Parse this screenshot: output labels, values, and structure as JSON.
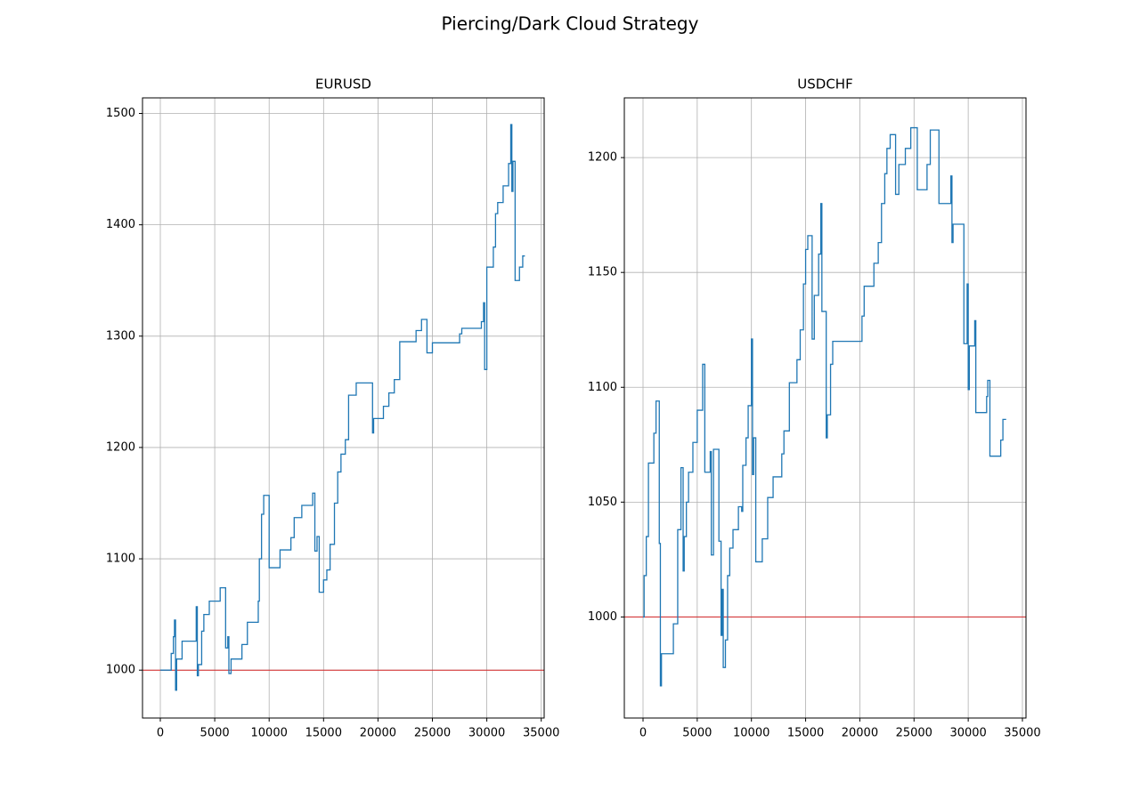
{
  "title": "Piercing/Dark Cloud Strategy",
  "chart_data": [
    {
      "type": "line",
      "title": "EURUSD",
      "color": "#1f77b4",
      "step": "post",
      "grid": true,
      "hline": {
        "value": 1000,
        "color": "#d62728"
      },
      "xlim": [
        -1637,
        35270
      ],
      "ylim": [
        957,
        1514
      ],
      "xticks": [
        0,
        5000,
        10000,
        15000,
        20000,
        25000,
        30000,
        35000
      ],
      "yticks": [
        1000,
        1100,
        1200,
        1300,
        1400,
        1500
      ],
      "x": [
        0,
        1000,
        1200,
        1300,
        1400,
        1500,
        1800,
        2000,
        3000,
        3300,
        3400,
        3500,
        3800,
        4000,
        4500,
        5000,
        5500,
        6000,
        6200,
        6300,
        6500,
        7500,
        8000,
        8300,
        9000,
        9100,
        9300,
        9500,
        10000,
        11000,
        12000,
        12300,
        13000,
        14000,
        14200,
        14400,
        14600,
        15000,
        15300,
        15600,
        16000,
        16300,
        16600,
        17000,
        17300,
        17600,
        18000,
        19500,
        19600,
        20000,
        20500,
        21000,
        21500,
        22000,
        23500,
        24000,
        24500,
        25000,
        27500,
        27700,
        28000,
        29500,
        29700,
        29800,
        30000,
        30600,
        30800,
        31000,
        31500,
        32000,
        32200,
        32300,
        32400,
        32600,
        32800,
        33000,
        33300,
        33500
      ],
      "values": [
        1000,
        1015,
        1030,
        1045,
        982,
        1010,
        1010,
        1026,
        1026,
        1057,
        995,
        1005,
        1035,
        1050,
        1062,
        1062,
        1074,
        1020,
        1030,
        997,
        1010,
        1023,
        1043,
        1043,
        1062,
        1100,
        1140,
        1157,
        1092,
        1108,
        1119,
        1137,
        1148,
        1159,
        1107,
        1120,
        1070,
        1081,
        1090,
        1113,
        1150,
        1178,
        1194,
        1207,
        1247,
        1247,
        1258,
        1213,
        1226,
        1226,
        1237,
        1249,
        1261,
        1295,
        1305,
        1315,
        1285,
        1294,
        1302,
        1307,
        1307,
        1313,
        1330,
        1270,
        1362,
        1380,
        1410,
        1420,
        1435,
        1455,
        1490,
        1430,
        1457,
        1350,
        1350,
        1362,
        1372,
        1372
      ]
    },
    {
      "type": "line",
      "title": "USDCHF",
      "color": "#1f77b4",
      "step": "post",
      "grid": true,
      "hline": {
        "value": 1000,
        "color": "#d62728"
      },
      "xlim": [
        -1725,
        35330
      ],
      "ylim": [
        956,
        1226
      ],
      "xticks": [
        0,
        5000,
        10000,
        15000,
        20000,
        25000,
        30000,
        35000
      ],
      "yticks": [
        1000,
        1050,
        1100,
        1150,
        1200
      ],
      "x": [
        0,
        100,
        300,
        500,
        1000,
        1200,
        1500,
        1600,
        1700,
        2800,
        3200,
        3500,
        3700,
        3800,
        4000,
        4200,
        4600,
        5000,
        5500,
        5700,
        6200,
        6300,
        6500,
        7000,
        7200,
        7300,
        7400,
        7600,
        7800,
        8000,
        8300,
        8800,
        9100,
        9200,
        9500,
        9700,
        10000,
        10100,
        10200,
        10400,
        11000,
        11500,
        12000,
        12800,
        13000,
        13500,
        14200,
        14500,
        14800,
        15000,
        15200,
        15600,
        15800,
        16200,
        16400,
        16500,
        16900,
        17000,
        17300,
        17500,
        20200,
        20400,
        21300,
        21700,
        22000,
        22300,
        22500,
        22800,
        23300,
        23600,
        24200,
        24700,
        25300,
        26200,
        26500,
        27300,
        28400,
        28500,
        28600,
        29600,
        29900,
        30000,
        30100,
        30600,
        30700,
        31700,
        31800,
        32000,
        33000,
        33200,
        33500
      ],
      "values": [
        1000,
        1018,
        1035,
        1067,
        1080,
        1094,
        1032,
        970,
        984,
        997,
        1038,
        1065,
        1020,
        1035,
        1050,
        1063,
        1076,
        1090,
        1110,
        1063,
        1072,
        1027,
        1073,
        1033,
        992,
        1012,
        978,
        990,
        1018,
        1030,
        1038,
        1048,
        1046,
        1066,
        1078,
        1092,
        1121,
        1062,
        1078,
        1024,
        1034,
        1052,
        1061,
        1071,
        1081,
        1102,
        1112,
        1125,
        1145,
        1160,
        1166,
        1121,
        1140,
        1158,
        1180,
        1133,
        1078,
        1088,
        1110,
        1120,
        1131,
        1144,
        1154,
        1163,
        1180,
        1193,
        1204,
        1210,
        1184,
        1197,
        1204,
        1213,
        1186,
        1197,
        1212,
        1180,
        1192,
        1163,
        1171,
        1119,
        1145,
        1099,
        1118,
        1129,
        1089,
        1096,
        1103,
        1070,
        1077,
        1086,
        1086
      ]
    }
  ]
}
